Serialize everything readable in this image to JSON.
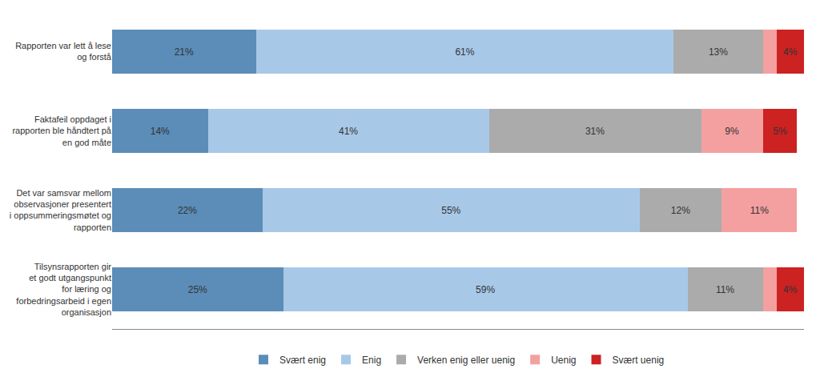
{
  "chart_data": {
    "type": "bar",
    "orientation": "horizontal",
    "stacked": true,
    "categories": [
      "Rapporten var lett å lese\nog forstå",
      "Faktafeil oppdaget i\nrapporten ble håndtert på\nen god måte",
      "Det var samsvar mellom\nobservasjoner presentert\ni oppsummeringsmøtet og\nrapporten",
      "Tilsynsrapporten gir\net godt utgangspunkt\nfor læring og\nforbedringsarbeid i egen\norganisasjon"
    ],
    "series": [
      {
        "name": "Svært enig",
        "color": "#5B8DB8",
        "values": [
          21,
          14,
          22,
          25
        ],
        "value_labels": [
          "21%",
          "14%",
          "22%",
          "25%"
        ]
      },
      {
        "name": "Enig",
        "color": "#A8C8E8",
        "values": [
          61,
          41,
          55,
          59
        ],
        "value_labels": [
          "61%",
          "41%",
          "55%",
          "59%"
        ]
      },
      {
        "name": "Verken enig eller uenig",
        "color": "#ABABAB",
        "values": [
          13,
          31,
          12,
          11
        ],
        "value_labels": [
          "13%",
          "31%",
          "12%",
          "11%"
        ]
      },
      {
        "name": "Uenig",
        "color": "#F4A0A0",
        "values": [
          2,
          9,
          11,
          2
        ],
        "value_labels": [
          null,
          "9%",
          "11%",
          null
        ]
      },
      {
        "name": "Svært uenig",
        "color": "#CC2222",
        "values": [
          4,
          5,
          0,
          4
        ],
        "value_labels": [
          "4%",
          "5%",
          null,
          "4%"
        ]
      }
    ],
    "xlim": [
      0,
      101
    ],
    "data_labels": true,
    "tick_labels": "y",
    "grid": false,
    "legend": "bottom"
  }
}
